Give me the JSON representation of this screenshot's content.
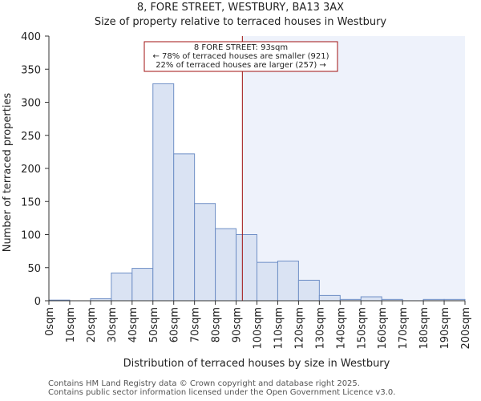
{
  "title_line1": "8, FORE STREET, WESTBURY, BA13 3AX",
  "title_line2": "Size of property relative to terraced houses in Westbury",
  "footer_line1": "Contains HM Land Registry data © Crown copyright and database right 2025.",
  "footer_line2": "Contains public sector information licensed under the Open Government Licence v3.0.",
  "chart_data": {
    "type": "bar",
    "title": "Size of property relative to terraced houses in Westbury",
    "xlabel": "Distribution of terraced houses by size in Westbury",
    "ylabel": "Number of terraced properties",
    "bin_edges": [
      0,
      10,
      20,
      30,
      40,
      50,
      60,
      70,
      80,
      90,
      100,
      110,
      120,
      130,
      140,
      150,
      160,
      170,
      180,
      190,
      200
    ],
    "tick_labels": [
      "0sqm",
      "10sqm",
      "20sqm",
      "30sqm",
      "40sqm",
      "50sqm",
      "60sqm",
      "70sqm",
      "80sqm",
      "90sqm",
      "100sqm",
      "110sqm",
      "120sqm",
      "130sqm",
      "140sqm",
      "150sqm",
      "160sqm",
      "170sqm",
      "180sqm",
      "190sqm",
      "200sqm"
    ],
    "values": [
      1,
      0,
      3,
      42,
      49,
      328,
      222,
      147,
      109,
      100,
      58,
      60,
      31,
      8,
      2,
      6,
      2,
      0,
      2,
      2
    ],
    "ylim": [
      0,
      400
    ],
    "yticks": [
      0,
      50,
      100,
      150,
      200,
      250,
      300,
      350,
      400
    ],
    "xlim": [
      0,
      200
    ],
    "marker_value": 93,
    "annotation": {
      "line1": "8 FORE STREET: 93sqm",
      "line2": "← 78% of terraced houses are smaller (921)",
      "line3": "22% of terraced houses are larger (257) →"
    },
    "colors": {
      "bar_fill": "#dae3f3",
      "bar_stroke": "#6f8fc6",
      "marker": "#a01010",
      "shade": "#eef2fb",
      "axis": "#333333"
    }
  }
}
